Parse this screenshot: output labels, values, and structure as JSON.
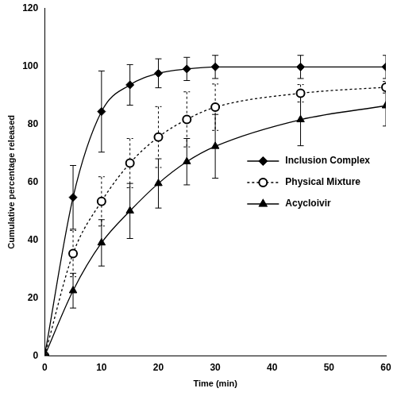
{
  "chart_data": {
    "type": "line",
    "x_label": "Time (min)",
    "y_label": "Cumulative percentage released",
    "x": [
      0,
      5,
      10,
      15,
      20,
      25,
      30,
      45,
      60
    ],
    "series": [
      {
        "name": "Inclusion Complex",
        "color": "#000000",
        "marker": "diamond",
        "line_style": "solid",
        "values": [
          0,
          54.7,
          84.3,
          93.5,
          97.5,
          99.0,
          99.7,
          99.7,
          99.7
        ],
        "errors": [
          0,
          11,
          14,
          7,
          5,
          4,
          4,
          4,
          4
        ]
      },
      {
        "name": "Physical Mixture",
        "color": "#000000",
        "marker": "circle_open",
        "line_style": "dotted",
        "values": [
          0,
          35.3,
          53.3,
          66.5,
          75.5,
          81.6,
          85.8,
          90.6,
          92.7
        ],
        "errors": [
          0,
          8,
          8.5,
          8.5,
          10.5,
          9.5,
          8,
          3,
          2
        ]
      },
      {
        "name": "Acycloivir",
        "color": "#000000",
        "marker": "triangle",
        "line_style": "solid",
        "values": [
          0,
          22.5,
          39.0,
          50.0,
          59.5,
          67.0,
          72.3,
          81.5,
          86.3
        ],
        "errors": [
          0,
          6,
          8,
          9.5,
          8.5,
          8,
          11,
          9,
          7
        ]
      }
    ],
    "xlim": [
      0,
      60
    ],
    "xticks": [
      0,
      10,
      20,
      30,
      40,
      50,
      60
    ],
    "ylim": [
      0,
      120
    ],
    "yticks": [
      0,
      20,
      40,
      60,
      80,
      100,
      120
    ],
    "grid": false,
    "legend": "lower right"
  }
}
